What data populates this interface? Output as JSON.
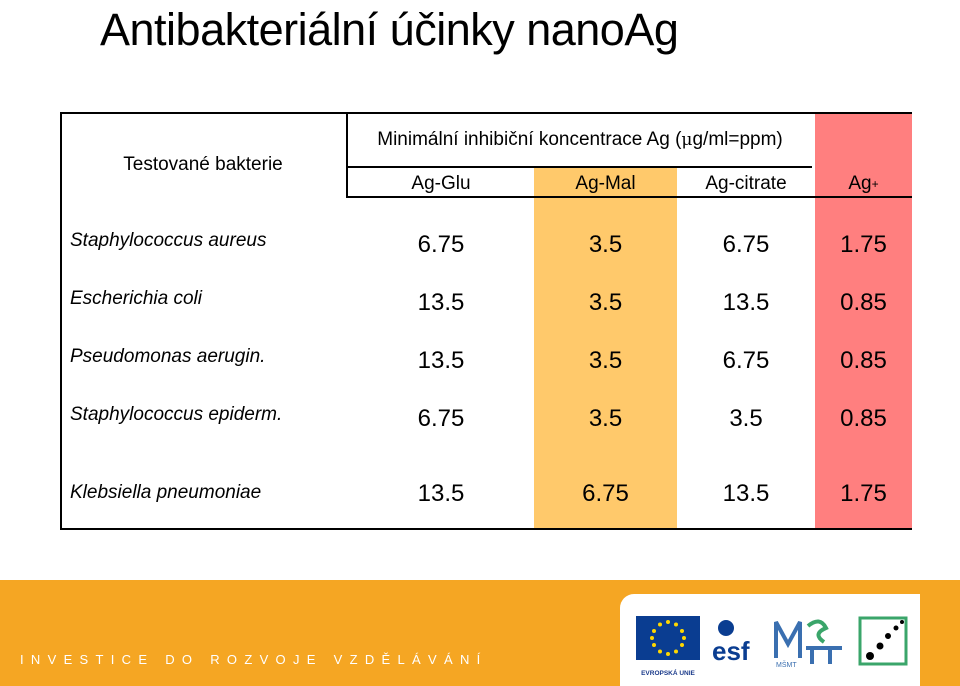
{
  "title": "Antibakteriální účinky nanoAg",
  "table": {
    "corner_label": "Testované bakterie",
    "group_header_pre": "Minimální inhibiční koncentrace Ag (",
    "group_header_mu": "μ",
    "group_header_post": "g/ml=ppm)",
    "columns": [
      "Ag-Glu",
      "Ag-Mal",
      "Ag-citrate",
      "Ag"
    ],
    "ag_superscript": "+",
    "rows": [
      {
        "bacterium": "Staphylococcus aureus",
        "values": [
          "6.75",
          "3.5",
          "6.75",
          "1.75"
        ]
      },
      {
        "bacterium": "Escherichia coli",
        "values": [
          "13.5",
          "3.5",
          "13.5",
          "0.85"
        ]
      },
      {
        "bacterium": "Pseudomonas aerugin.",
        "values": [
          "13.5",
          "3.5",
          "6.75",
          "0.85"
        ]
      },
      {
        "bacterium": "Staphylococcus epiderm.",
        "values": [
          "6.75",
          "3.5",
          "3.5",
          "0.85"
        ]
      },
      {
        "bacterium": "Klebsiella pneumoniae",
        "values": [
          "13.5",
          "6.75",
          "13.5",
          "1.75"
        ]
      }
    ]
  },
  "footer": {
    "slogan": "INVESTICE DO ROZVOJE VZDĚLÁVÁNÍ",
    "eu_caption": "EVROPSKÁ UNIE",
    "esf_logo": "esf",
    "msmt_logo": "MŠMT"
  },
  "colors": {
    "ag_mal_column": "#FFC96B",
    "ag_plus_column": "#FF7F7F",
    "footer_band": "#F5A623"
  }
}
